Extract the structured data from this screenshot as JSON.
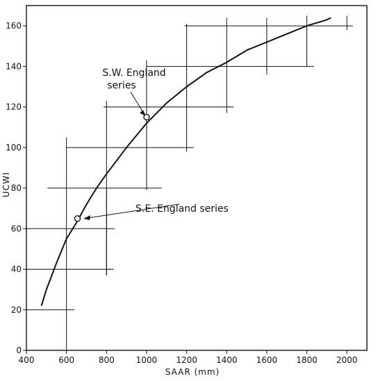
{
  "chart_data": {
    "type": "line",
    "title": "",
    "xlabel": "SAAR (mm)",
    "ylabel": "UCWI",
    "xlim": [
      400,
      2100
    ],
    "ylim": [
      0,
      170
    ],
    "x_ticks": [
      400,
      600,
      800,
      1000,
      1200,
      1400,
      1600,
      1800,
      2000
    ],
    "y_ticks": [
      0,
      20,
      40,
      60,
      80,
      100,
      120,
      140,
      160
    ],
    "grid": false,
    "legend": "none",
    "series": [
      {
        "x": [
          475,
          500,
          550,
          600,
          650,
          700,
          750,
          800,
          900,
          1000,
          1100,
          1200,
          1300,
          1400,
          1500,
          1600,
          1700,
          1800,
          1900,
          1920
        ],
        "y": [
          22,
          30,
          43,
          55,
          63,
          72,
          80,
          87,
          100,
          112,
          122,
          130,
          137,
          142,
          148,
          152,
          156,
          160,
          163,
          164
        ],
        "color": "#111111"
      }
    ],
    "ranges": [
      {
        "y": 20,
        "x_from": 400,
        "x_to": 640,
        "y_from": null,
        "y_to": null,
        "x_mid": null
      },
      {
        "y": 40,
        "x_from": 400,
        "x_to": 835,
        "y_from": 37,
        "y_to": 79,
        "x_mid": 800
      },
      {
        "y": 60,
        "x_from": 400,
        "x_to": 840,
        "y_from": 0,
        "y_to": 105,
        "x_mid": 600
      },
      {
        "y": 80,
        "x_from": 505,
        "x_to": 1075,
        "y_from": 37,
        "y_to": 123,
        "x_mid": 800
      },
      {
        "y": 100,
        "x_from": 600,
        "x_to": 1235,
        "y_from": 79,
        "y_to": 143,
        "x_mid": 1000
      },
      {
        "y": 120,
        "x_from": 785,
        "x_to": 1435,
        "y_from": 98,
        "y_to": 161,
        "x_mid": 1200
      },
      {
        "y": 140,
        "x_from": 1000,
        "x_to": 1835,
        "y_from": 117,
        "y_to": 164,
        "x_mid": 1400
      },
      {
        "y": 160,
        "x_from": 1190,
        "x_to": 2030,
        "y_from": 136,
        "y_to": 164,
        "x_mid": 1600
      }
    ],
    "extra_verticals": [
      {
        "x": 1800,
        "y_from": 140,
        "y_to": 165
      },
      {
        "x": 2000,
        "y_from": 158,
        "y_to": 165
      }
    ],
    "points": [
      {
        "x": 655,
        "y": 65,
        "label": "S.E. England series"
      },
      {
        "x": 1000,
        "y": 115,
        "label_lines": [
          "S.W. England",
          "series"
        ]
      }
    ]
  }
}
